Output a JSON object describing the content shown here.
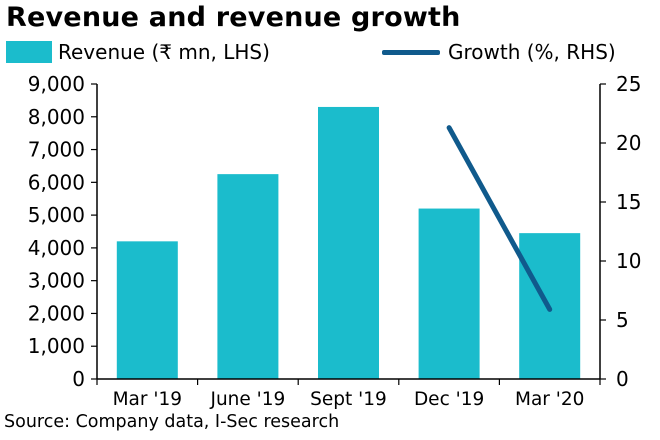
{
  "chart_data": {
    "type": "bar",
    "title": "Revenue and revenue growth",
    "categories": [
      "Mar '19",
      "June '19",
      "Sept '19",
      "Dec '19",
      "Mar '20"
    ],
    "series": [
      {
        "name": "Revenue (₹ mn, LHS)",
        "type": "bar",
        "axis": "left",
        "color": "#1bbccc",
        "values": [
          4200,
          6250,
          8300,
          5200,
          4450
        ]
      },
      {
        "name": "Growth (%, RHS)",
        "type": "line",
        "axis": "right",
        "color": "#105a8c",
        "values": [
          null,
          null,
          null,
          21.3,
          5.9
        ]
      }
    ],
    "left_axis": {
      "ylim": [
        0,
        9000
      ],
      "ticks": [
        0,
        1000,
        2000,
        3000,
        4000,
        5000,
        6000,
        7000,
        8000,
        9000
      ],
      "tick_labels": [
        "0",
        "1,000",
        "2,000",
        "3,000",
        "4,000",
        "5,000",
        "6,000",
        "7,000",
        "8,000",
        "9,000"
      ]
    },
    "right_axis": {
      "ylim": [
        0,
        25
      ],
      "ticks": [
        0,
        5,
        10,
        15,
        20,
        25
      ],
      "tick_labels": [
        "0",
        "5",
        "10",
        "15",
        "20",
        "25"
      ]
    },
    "legend_position": "top",
    "grid": false
  },
  "source": "Source: Company data, I-Sec research"
}
